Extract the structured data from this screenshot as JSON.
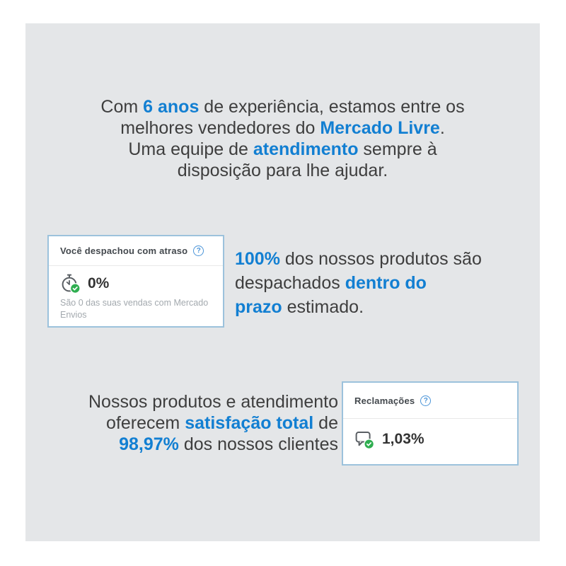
{
  "colors": {
    "accent": "#127fd2",
    "canvas_bg": "#e4e6e8",
    "text_dark": "#3e3e3e",
    "card_border": "#9cc2dc",
    "card_title": "#43484d",
    "muted_text": "#a3a9ae",
    "green_badge": "#2fae50",
    "help_blue": "#4a94d8",
    "icon_gray": "#5a5f64"
  },
  "intro": {
    "lines": [
      [
        {
          "t": "Com "
        },
        {
          "t": "6 anos",
          "a": true
        },
        {
          "t": " de experiência, estamos entre os"
        }
      ],
      [
        {
          "t": "melhores vendedores do "
        },
        {
          "t": "Mercado Livre",
          "a": true
        },
        {
          "t": "."
        }
      ],
      [
        {
          "t": "Uma equipe de "
        },
        {
          "t": "atendimento",
          "a": true
        },
        {
          "t": " sempre à"
        }
      ],
      [
        {
          "t": "disposição para lhe ajudar."
        }
      ]
    ]
  },
  "shipping": {
    "lines": [
      [
        {
          "t": "100%",
          "a": true
        },
        {
          "t": " dos nossos produtos são"
        }
      ],
      [
        {
          "t": "despachados "
        },
        {
          "t": "dentro do",
          "a": true
        }
      ],
      [
        {
          "t": "prazo",
          "a": true
        },
        {
          "t": " estimado."
        }
      ]
    ],
    "card": {
      "title": "Você despachou com atraso",
      "help_glyph": "?",
      "icon": "stopwatch-check-icon",
      "value": "0%",
      "subtext": "São 0 das suas vendas com Mercado\nEnvios"
    }
  },
  "satisfaction": {
    "lines": [
      [
        {
          "t": "Nossos produtos e atendimento"
        }
      ],
      [
        {
          "t": "oferecem "
        },
        {
          "t": "satisfação total",
          "a": true
        },
        {
          "t": " de"
        }
      ],
      [
        {
          "t": "98,97%",
          "a": true
        },
        {
          "t": " dos nossos clientes"
        }
      ]
    ],
    "card": {
      "title": "Reclamações",
      "help_glyph": "?",
      "icon": "chat-bubble-check-icon",
      "value": "1,03%"
    }
  }
}
